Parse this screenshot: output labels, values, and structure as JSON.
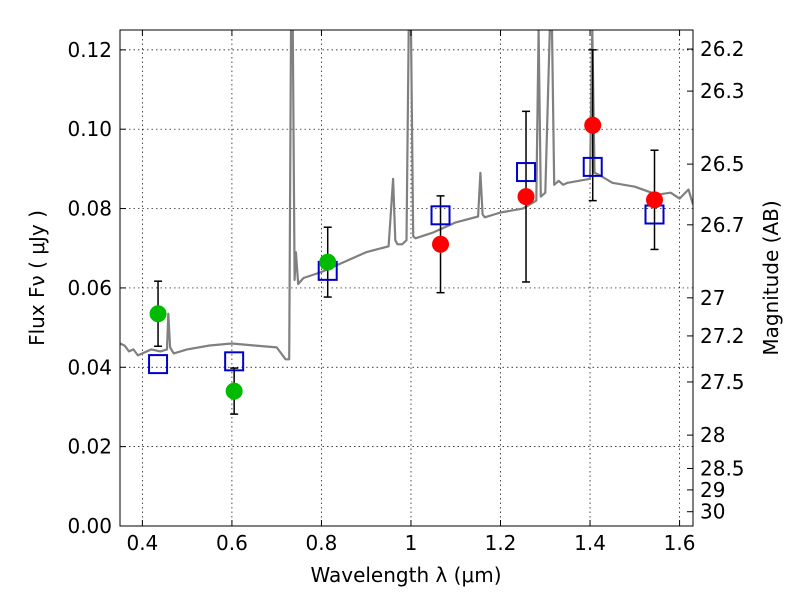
{
  "chart_data": {
    "type": "scatter",
    "xlabel": "Wavelength  λ (μm)",
    "ylabel": "Flux  Fν  ( μJy )",
    "ylabel_right": "Magnitude (AB)",
    "xlim": [
      0.35,
      1.63
    ],
    "ylim": [
      0.0,
      0.125
    ],
    "grid": true,
    "x_ticks": [
      0.4,
      0.6,
      0.8,
      1.0,
      1.2,
      1.4,
      1.6
    ],
    "x_tick_labels": [
      "0.4",
      "0.6",
      "0.8",
      "1",
      "1.2",
      "1.4",
      "1.6"
    ],
    "y_ticks": [
      0.0,
      0.02,
      0.04,
      0.06,
      0.08,
      0.1,
      0.12
    ],
    "y_tick_labels": [
      "0.00",
      "0.02",
      "0.04",
      "0.06",
      "0.08",
      "0.10",
      "0.12"
    ],
    "right_ticks": [
      {
        "label": "26.2",
        "flux": 0.1202
      },
      {
        "label": "26.3",
        "flux": 0.1096
      },
      {
        "label": "26.5",
        "flux": 0.0912
      },
      {
        "label": "26.7",
        "flux": 0.0759
      },
      {
        "label": "27",
        "flux": 0.0575
      },
      {
        "label": "27.2",
        "flux": 0.0479
      },
      {
        "label": "27.5",
        "flux": 0.0363
      },
      {
        "label": "28",
        "flux": 0.0229
      },
      {
        "label": "28.5",
        "flux": 0.0145
      },
      {
        "label": "29",
        "flux": 0.0091
      },
      {
        "label": "30",
        "flux": 0.0036
      }
    ],
    "series": [
      {
        "marker": "circle",
        "color": "#00bb00",
        "x": [
          0.435,
          0.605,
          0.814
        ],
        "y": [
          0.0535,
          0.034,
          0.0665
        ],
        "yerr": [
          0.0082,
          0.0058,
          0.0088
        ]
      },
      {
        "marker": "circle",
        "color": "#ff0000",
        "x": [
          1.066,
          1.257,
          1.406,
          1.544
        ],
        "y": [
          0.071,
          0.083,
          0.101,
          0.0822
        ],
        "yerr": [
          0.0122,
          0.0215,
          0.019,
          0.0125
        ]
      },
      {
        "marker": "open-square",
        "color": "#0000cc",
        "x": [
          0.435,
          0.605,
          0.814,
          1.066,
          1.257,
          1.406,
          1.544
        ],
        "y": [
          0.0408,
          0.0415,
          0.0643,
          0.0783,
          0.0892,
          0.0905,
          0.0785
        ]
      },
      {
        "type": "line",
        "color": "#808080",
        "x": [
          0.35,
          0.36,
          0.37,
          0.38,
          0.39,
          0.4,
          0.42,
          0.44,
          0.455,
          0.458,
          0.462,
          0.47,
          0.5,
          0.55,
          0.6,
          0.65,
          0.7,
          0.72,
          0.728,
          0.732,
          0.736,
          0.74,
          0.743,
          0.748,
          0.76,
          0.8,
          0.85,
          0.9,
          0.95,
          0.96,
          0.965,
          0.97,
          0.98,
          0.99,
          0.995,
          1.0,
          1.005,
          1.01,
          1.05,
          1.1,
          1.15,
          1.155,
          1.16,
          1.165,
          1.2,
          1.25,
          1.28,
          1.285,
          1.29,
          1.3,
          1.31,
          1.315,
          1.32,
          1.33,
          1.34,
          1.35,
          1.4,
          1.405,
          1.41,
          1.42,
          1.45,
          1.5,
          1.55,
          1.58,
          1.6,
          1.62,
          1.63
        ],
        "y": [
          0.046,
          0.0455,
          0.044,
          0.0445,
          0.043,
          0.0435,
          0.0445,
          0.044,
          0.0445,
          0.0535,
          0.045,
          0.0435,
          0.0445,
          0.0455,
          0.046,
          0.0455,
          0.045,
          0.042,
          0.042,
          0.125,
          0.125,
          0.062,
          0.069,
          0.061,
          0.0625,
          0.064,
          0.0665,
          0.069,
          0.0705,
          0.0875,
          0.072,
          0.071,
          0.071,
          0.072,
          0.125,
          0.125,
          0.073,
          0.0725,
          0.074,
          0.0765,
          0.078,
          0.089,
          0.0785,
          0.0778,
          0.079,
          0.08,
          0.082,
          0.125,
          0.083,
          0.084,
          0.125,
          0.125,
          0.086,
          0.087,
          0.086,
          0.0865,
          0.0875,
          0.125,
          0.089,
          0.0885,
          0.0865,
          0.0855,
          0.0835,
          0.084,
          0.0825,
          0.0848,
          0.081
        ]
      }
    ]
  }
}
